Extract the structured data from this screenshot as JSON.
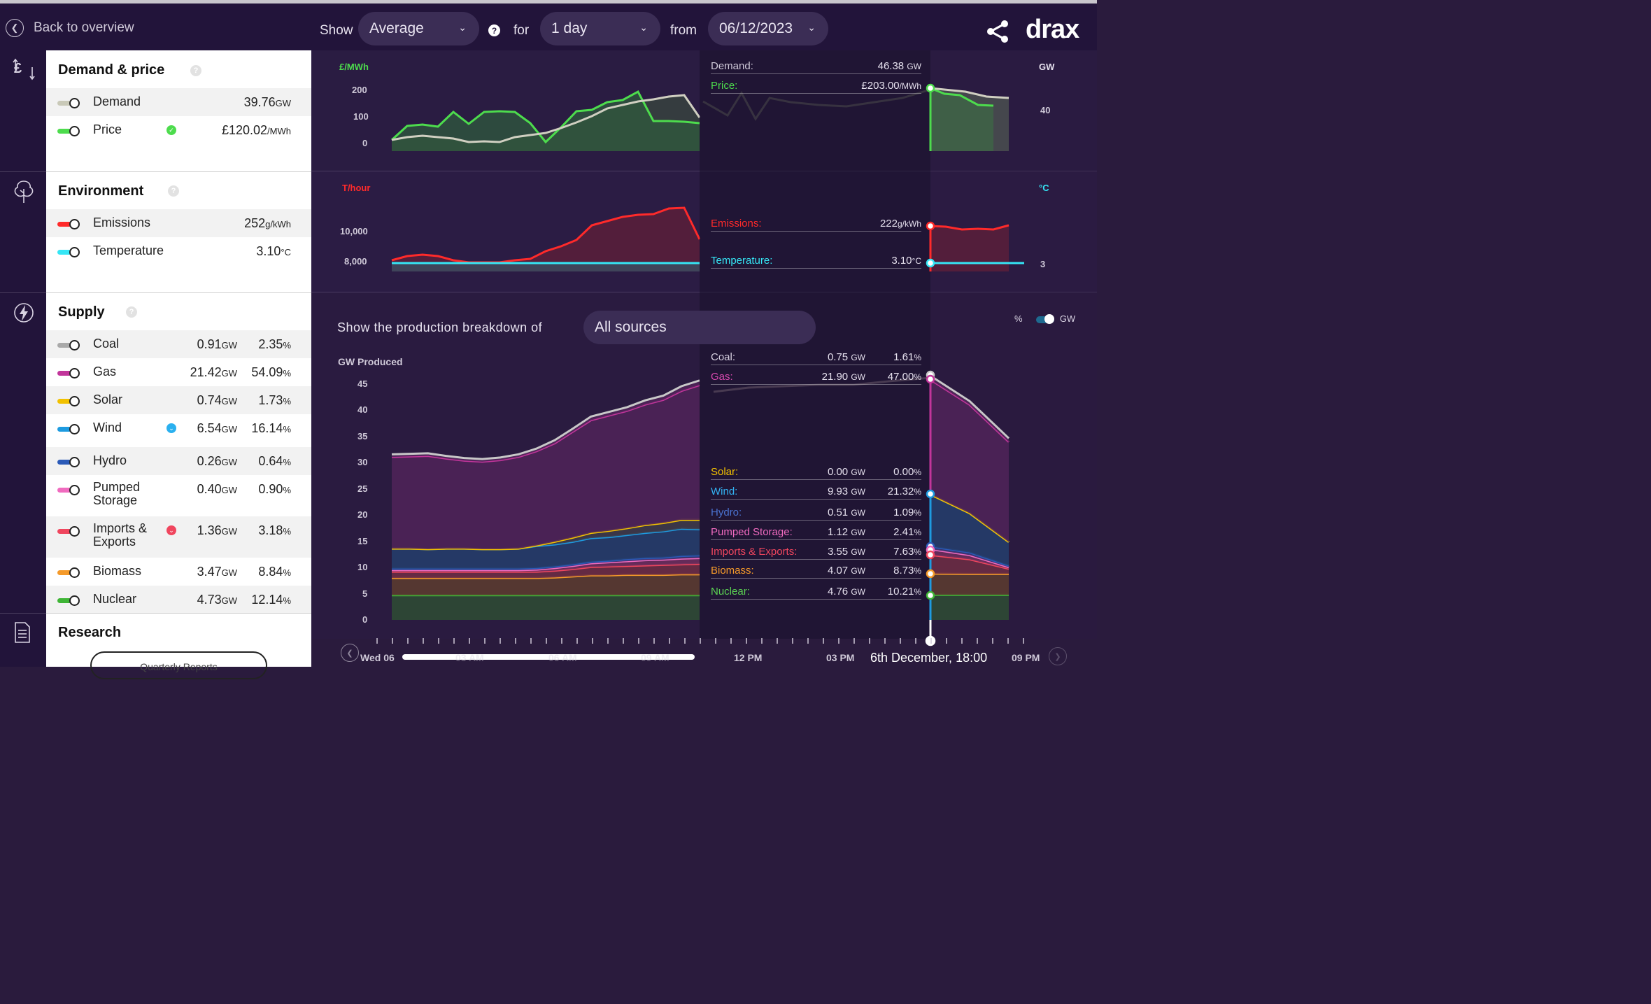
{
  "header": {
    "back_label": "Back to overview",
    "show_label": "Show",
    "show_value": "Average",
    "for_label": "for",
    "for_value": "1 day",
    "from_label": "from",
    "from_value": "06/12/2023",
    "logo": "drax",
    "help_icon": "question-icon",
    "share_icon": "share-icon"
  },
  "panel": {
    "demand_price": {
      "title": "Demand & price",
      "rows": [
        {
          "label": "Demand",
          "value": "39.76",
          "unit": "GW",
          "color": "#c9c9b8"
        },
        {
          "label": "Price",
          "value": "£120.02",
          "unit": "/MWh",
          "color": "#4ddc4d",
          "badge": "green"
        }
      ]
    },
    "environment": {
      "title": "Environment",
      "rows": [
        {
          "label": "Emissions",
          "value": "252",
          "unit": "g/kWh",
          "color": "#ff2a2a"
        },
        {
          "label": "Temperature",
          "value": "3.10",
          "unit": "°C",
          "color": "#35e6f5"
        }
      ]
    },
    "supply": {
      "title": "Supply",
      "rows": [
        {
          "label": "Coal",
          "gw": "0.91",
          "pct": "2.35",
          "color": "#a9a9a9"
        },
        {
          "label": "Gas",
          "gw": "21.42",
          "pct": "54.09",
          "color": "#c2359b"
        },
        {
          "label": "Solar",
          "gw": "0.74",
          "pct": "1.73",
          "color": "#f2c100"
        },
        {
          "label": "Wind",
          "gw": "6.54",
          "pct": "16.14",
          "color": "#1e9be0",
          "badge": "blue"
        },
        {
          "label": "Hydro",
          "gw": "0.26",
          "pct": "0.64",
          "color": "#2b5ab8"
        },
        {
          "label": "Pumped Storage",
          "gw": "0.40",
          "pct": "0.90",
          "color": "#f06bbf"
        },
        {
          "label": "Imports & Exports",
          "gw": "1.36",
          "pct": "3.18",
          "color": "#f0465e",
          "badge": "red"
        },
        {
          "label": "Biomass",
          "gw": "3.47",
          "pct": "8.84",
          "color": "#f59a2a"
        },
        {
          "label": "Nuclear",
          "gw": "4.73",
          "pct": "12.14",
          "color": "#3fb536"
        }
      ],
      "gw_unit": "GW",
      "pct_unit": "%"
    },
    "research": {
      "title": "Research",
      "button": "Quarterly Reports"
    }
  },
  "charts": {
    "price": {
      "left_unit": "£/MWh",
      "right_unit": "GW",
      "left_ticks": [
        "200",
        "100",
        "0"
      ],
      "right_ticks": [
        "40"
      ]
    },
    "environment": {
      "left_unit": "T/hour",
      "right_unit": "°C",
      "left_ticks": [
        "10,000",
        "8,000"
      ],
      "right_ticks": [
        "3"
      ]
    },
    "production": {
      "breakdown_label": "Show the production breakdown of",
      "source_value": "All sources",
      "unit_toggle_left": "%",
      "unit_toggle_right": "GW",
      "y_label": "GW Produced",
      "y_ticks": [
        "45",
        "40",
        "35",
        "30",
        "25",
        "20",
        "15",
        "10",
        "5",
        "0"
      ]
    }
  },
  "hover": {
    "demand": {
      "label": "Demand:",
      "value": "46.38",
      "unit": "GW"
    },
    "price": {
      "label": "Price:",
      "value": "£203.00",
      "unit": "/MWh"
    },
    "emissions": {
      "label": "Emissions:",
      "value": "222",
      "unit": "g/kWh"
    },
    "temperature": {
      "label": "Temperature:",
      "value": "3.10",
      "unit": "°C"
    },
    "supply": [
      {
        "label": "Coal:",
        "gw": "0.75",
        "pct": "1.61",
        "color": "#d8d2e2"
      },
      {
        "label": "Gas:",
        "gw": "21.90",
        "pct": "47.00",
        "color": "#d84ab0"
      },
      {
        "label": "Solar:",
        "gw": "0.00",
        "pct": "0.00",
        "color": "#f2c100"
      },
      {
        "label": "Wind:",
        "gw": "9.93",
        "pct": "21.32",
        "color": "#33b2f2"
      },
      {
        "label": "Hydro:",
        "gw": "0.51",
        "pct": "1.09",
        "color": "#4a72d0"
      },
      {
        "label": "Pumped Storage:",
        "gw": "1.12",
        "pct": "2.41",
        "color": "#f06bbf"
      },
      {
        "label": "Imports & Exports:",
        "gw": "3.55",
        "pct": "7.63",
        "color": "#f0465e"
      },
      {
        "label": "Biomass:",
        "gw": "4.07",
        "pct": "8.73",
        "color": "#f59a2a"
      },
      {
        "label": "Nuclear:",
        "gw": "4.76",
        "pct": "10.21",
        "color": "#5bd152"
      }
    ],
    "date": "6th December, 18:00"
  },
  "timeline": {
    "labels": [
      "Wed 06",
      "03 AM",
      "06 AM",
      "09 AM",
      "12 PM",
      "03 PM",
      "09 PM"
    ]
  },
  "chart_data": {
    "type": "area",
    "x": [
      "00:00",
      "01:00",
      "02:00",
      "03:00",
      "04:00",
      "05:00",
      "06:00",
      "07:00",
      "08:00",
      "09:00",
      "10:00",
      "11:00",
      "12:00",
      "13:00",
      "14:00",
      "15:00",
      "16:00",
      "17:00",
      "18:00",
      "19:00",
      "20:00"
    ],
    "series": [
      {
        "name": "Nuclear",
        "values": [
          4.7,
          4.7,
          4.7,
          4.7,
          4.7,
          4.7,
          4.7,
          4.7,
          4.7,
          4.7,
          4.7,
          4.7,
          4.7,
          4.7,
          4.7,
          4.7,
          4.7,
          4.7,
          4.76,
          4.76,
          4.76
        ]
      },
      {
        "name": "Biomass",
        "values": [
          3.3,
          3.3,
          3.3,
          3.3,
          3.3,
          3.3,
          3.3,
          3.3,
          3.3,
          3.4,
          3.6,
          3.8,
          3.8,
          3.9,
          3.9,
          3.9,
          4.0,
          4.0,
          4.07,
          4.0,
          4.0
        ]
      },
      {
        "name": "Imports & Exports",
        "values": [
          1.2,
          1.2,
          1.2,
          1.2,
          1.2,
          1.2,
          1.2,
          1.2,
          1.2,
          1.3,
          1.4,
          1.6,
          1.7,
          1.7,
          1.8,
          1.9,
          1.9,
          2.0,
          3.55,
          2.8,
          1.0
        ]
      },
      {
        "name": "Pumped Storage",
        "values": [
          0.3,
          0.3,
          0.3,
          0.3,
          0.3,
          0.3,
          0.3,
          0.3,
          0.4,
          0.5,
          0.6,
          0.7,
          0.8,
          0.9,
          1.0,
          1.0,
          1.1,
          1.1,
          1.12,
          0.8,
          0.3
        ]
      },
      {
        "name": "Hydro",
        "values": [
          0.3,
          0.3,
          0.3,
          0.3,
          0.3,
          0.3,
          0.3,
          0.3,
          0.3,
          0.3,
          0.3,
          0.3,
          0.3,
          0.4,
          0.4,
          0.4,
          0.5,
          0.5,
          0.51,
          0.5,
          0.3
        ]
      },
      {
        "name": "Wind",
        "values": [
          3.8,
          3.8,
          3.7,
          3.8,
          3.8,
          3.7,
          3.7,
          3.8,
          4.2,
          4.2,
          4.3,
          4.5,
          4.5,
          4.6,
          4.8,
          5.0,
          5.2,
          5.0,
          9.93,
          7.5,
          4.5
        ]
      },
      {
        "name": "Solar",
        "values": [
          0,
          0,
          0,
          0,
          0,
          0,
          0,
          0,
          0.1,
          0.5,
          0.8,
          1.0,
          1.2,
          1.3,
          1.5,
          1.6,
          1.7,
          1.8,
          0,
          0,
          0
        ]
      },
      {
        "name": "Gas",
        "values": [
          17.5,
          17.6,
          17.8,
          17.2,
          16.8,
          16.7,
          17.0,
          17.5,
          18.0,
          18.8,
          20.2,
          21.5,
          22.0,
          22.4,
          23.0,
          23.5,
          24.6,
          25.7,
          21.9,
          20.7,
          19.1
        ]
      },
      {
        "name": "Coal",
        "values": [
          0.5,
          0.5,
          0.5,
          0.5,
          0.5,
          0.5,
          0.5,
          0.5,
          0.5,
          0.6,
          0.6,
          0.7,
          0.7,
          0.7,
          0.8,
          0.8,
          0.9,
          0.9,
          0.75,
          0.7,
          0.7
        ]
      }
    ],
    "y_label": "GW Produced",
    "ylim": [
      0,
      45
    ]
  }
}
